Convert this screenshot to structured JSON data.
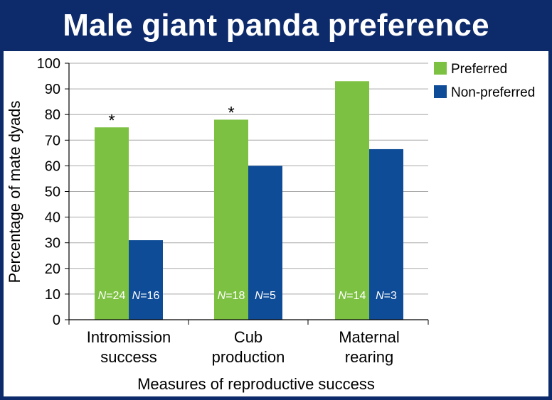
{
  "header": {
    "title": "Male giant panda preference"
  },
  "colors": {
    "preferred": "#7dc142",
    "non_preferred": "#0f4c97",
    "title_bar": "#0d2a6b"
  },
  "chart_data": {
    "type": "bar",
    "title": "Male giant panda preference",
    "xlabel": "Measures of reproductive success",
    "ylabel": "Percentage of mate dyads",
    "ylim": [
      0,
      100
    ],
    "yticks": [
      0,
      10,
      20,
      30,
      40,
      50,
      60,
      70,
      80,
      90,
      100
    ],
    "grid": true,
    "legend_position": "top-right",
    "categories": [
      [
        "Intromission",
        "success"
      ],
      [
        "Cub",
        "production"
      ],
      [
        "Maternal",
        "rearing"
      ]
    ],
    "series": [
      {
        "name": "Preferred",
        "color": "#7dc142",
        "values": [
          75,
          78,
          93
        ],
        "n_labels": [
          "24",
          "18",
          "14"
        ],
        "significance": [
          "*",
          "*",
          ""
        ]
      },
      {
        "name": "Non-preferred",
        "color": "#0f4c97",
        "values": [
          31,
          60,
          66.5
        ],
        "n_labels": [
          "16",
          "5",
          "3"
        ],
        "significance": [
          "",
          "",
          ""
        ]
      }
    ],
    "n_prefix": "N",
    "n_separator": "="
  }
}
